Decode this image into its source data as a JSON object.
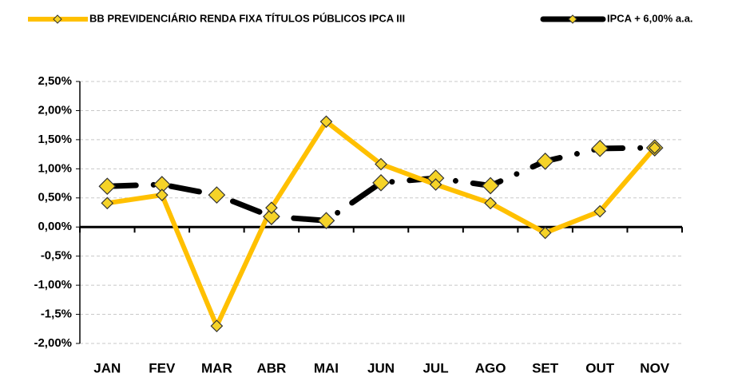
{
  "chart_data": {
    "type": "line",
    "categories": [
      "JAN",
      "FEV",
      "MAR",
      "ABR",
      "MAI",
      "JUN",
      "JUL",
      "AGO",
      "SET",
      "OUT",
      "NOV"
    ],
    "series": [
      {
        "name": "BB PREVIDENCIÁRIO RENDA FIXA TÍTULOS PÚBLICOS IPCA III",
        "color": "#ffc000",
        "values": [
          0.41,
          0.55,
          -1.7,
          0.33,
          1.81,
          1.08,
          0.73,
          0.41,
          -0.1,
          0.27,
          1.36
        ]
      },
      {
        "name": "IPCA + 6,00% a.a.",
        "color": "#000000",
        "values": [
          0.7,
          0.73,
          0.55,
          0.18,
          0.11,
          0.76,
          0.84,
          0.71,
          1.13,
          1.35,
          1.36
        ]
      }
    ],
    "marker_color": "#f5d328",
    "ylim": [
      -2.0,
      2.5
    ],
    "yticks": [
      {
        "value": 2.5,
        "label": "2,50%"
      },
      {
        "value": 2.0,
        "label": "2,00%"
      },
      {
        "value": 1.5,
        "label": "1,50%"
      },
      {
        "value": 1.0,
        "label": "1,00%"
      },
      {
        "value": 0.5,
        "label": "0,50%"
      },
      {
        "value": 0,
        "label": "0,00%"
      },
      {
        "value": -0.5,
        "label": "-0,5%"
      },
      {
        "value": -1.0,
        "label": "-1,00%"
      },
      {
        "value": -1.5,
        "label": "-1,5%"
      },
      {
        "value": -2.0,
        "label": "-2,00%"
      }
    ],
    "grid": true
  }
}
